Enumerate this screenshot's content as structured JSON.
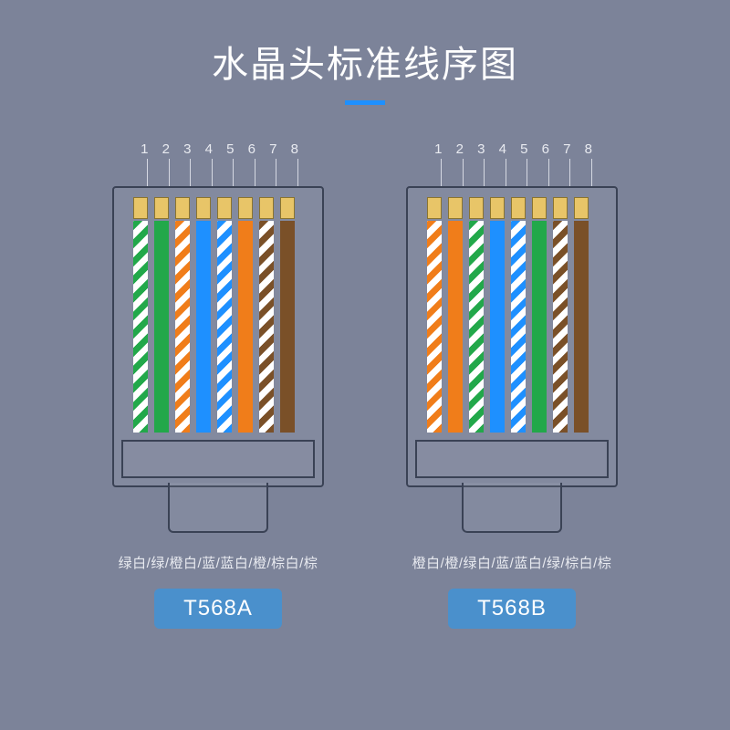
{
  "title": "水晶头标准线序图",
  "underline_color": "#1e90ff",
  "background_color": "#7c8399",
  "text_color": "#ffffff",
  "pin_numbers": [
    "1",
    "2",
    "3",
    "4",
    "5",
    "6",
    "7",
    "8"
  ],
  "gold_pin_color": "#e8c568",
  "outline_color": "#3a4255",
  "wire_colors": {
    "green": "#22a84a",
    "orange": "#f07d1a",
    "blue": "#1e90ff",
    "brown": "#7a5028",
    "white": "#ffffff"
  },
  "connectors": [
    {
      "name": "T568A",
      "label": "绿白/绿/橙白/蓝/蓝白/橙/棕白/棕",
      "wires": [
        {
          "type": "striped",
          "stripe": "green"
        },
        {
          "type": "solid",
          "color": "green"
        },
        {
          "type": "striped",
          "stripe": "orange"
        },
        {
          "type": "solid",
          "color": "blue"
        },
        {
          "type": "striped",
          "stripe": "blue"
        },
        {
          "type": "solid",
          "color": "orange"
        },
        {
          "type": "striped",
          "stripe": "brown"
        },
        {
          "type": "solid",
          "color": "brown"
        }
      ]
    },
    {
      "name": "T568B",
      "label": "橙白/橙/绿白/蓝/蓝白/绿/棕白/棕",
      "wires": [
        {
          "type": "striped",
          "stripe": "orange"
        },
        {
          "type": "solid",
          "color": "orange"
        },
        {
          "type": "striped",
          "stripe": "green"
        },
        {
          "type": "solid",
          "color": "blue"
        },
        {
          "type": "striped",
          "stripe": "blue"
        },
        {
          "type": "solid",
          "color": "green"
        },
        {
          "type": "striped",
          "stripe": "brown"
        },
        {
          "type": "solid",
          "color": "brown"
        }
      ]
    }
  ],
  "badge_bg": "#4a90cc"
}
